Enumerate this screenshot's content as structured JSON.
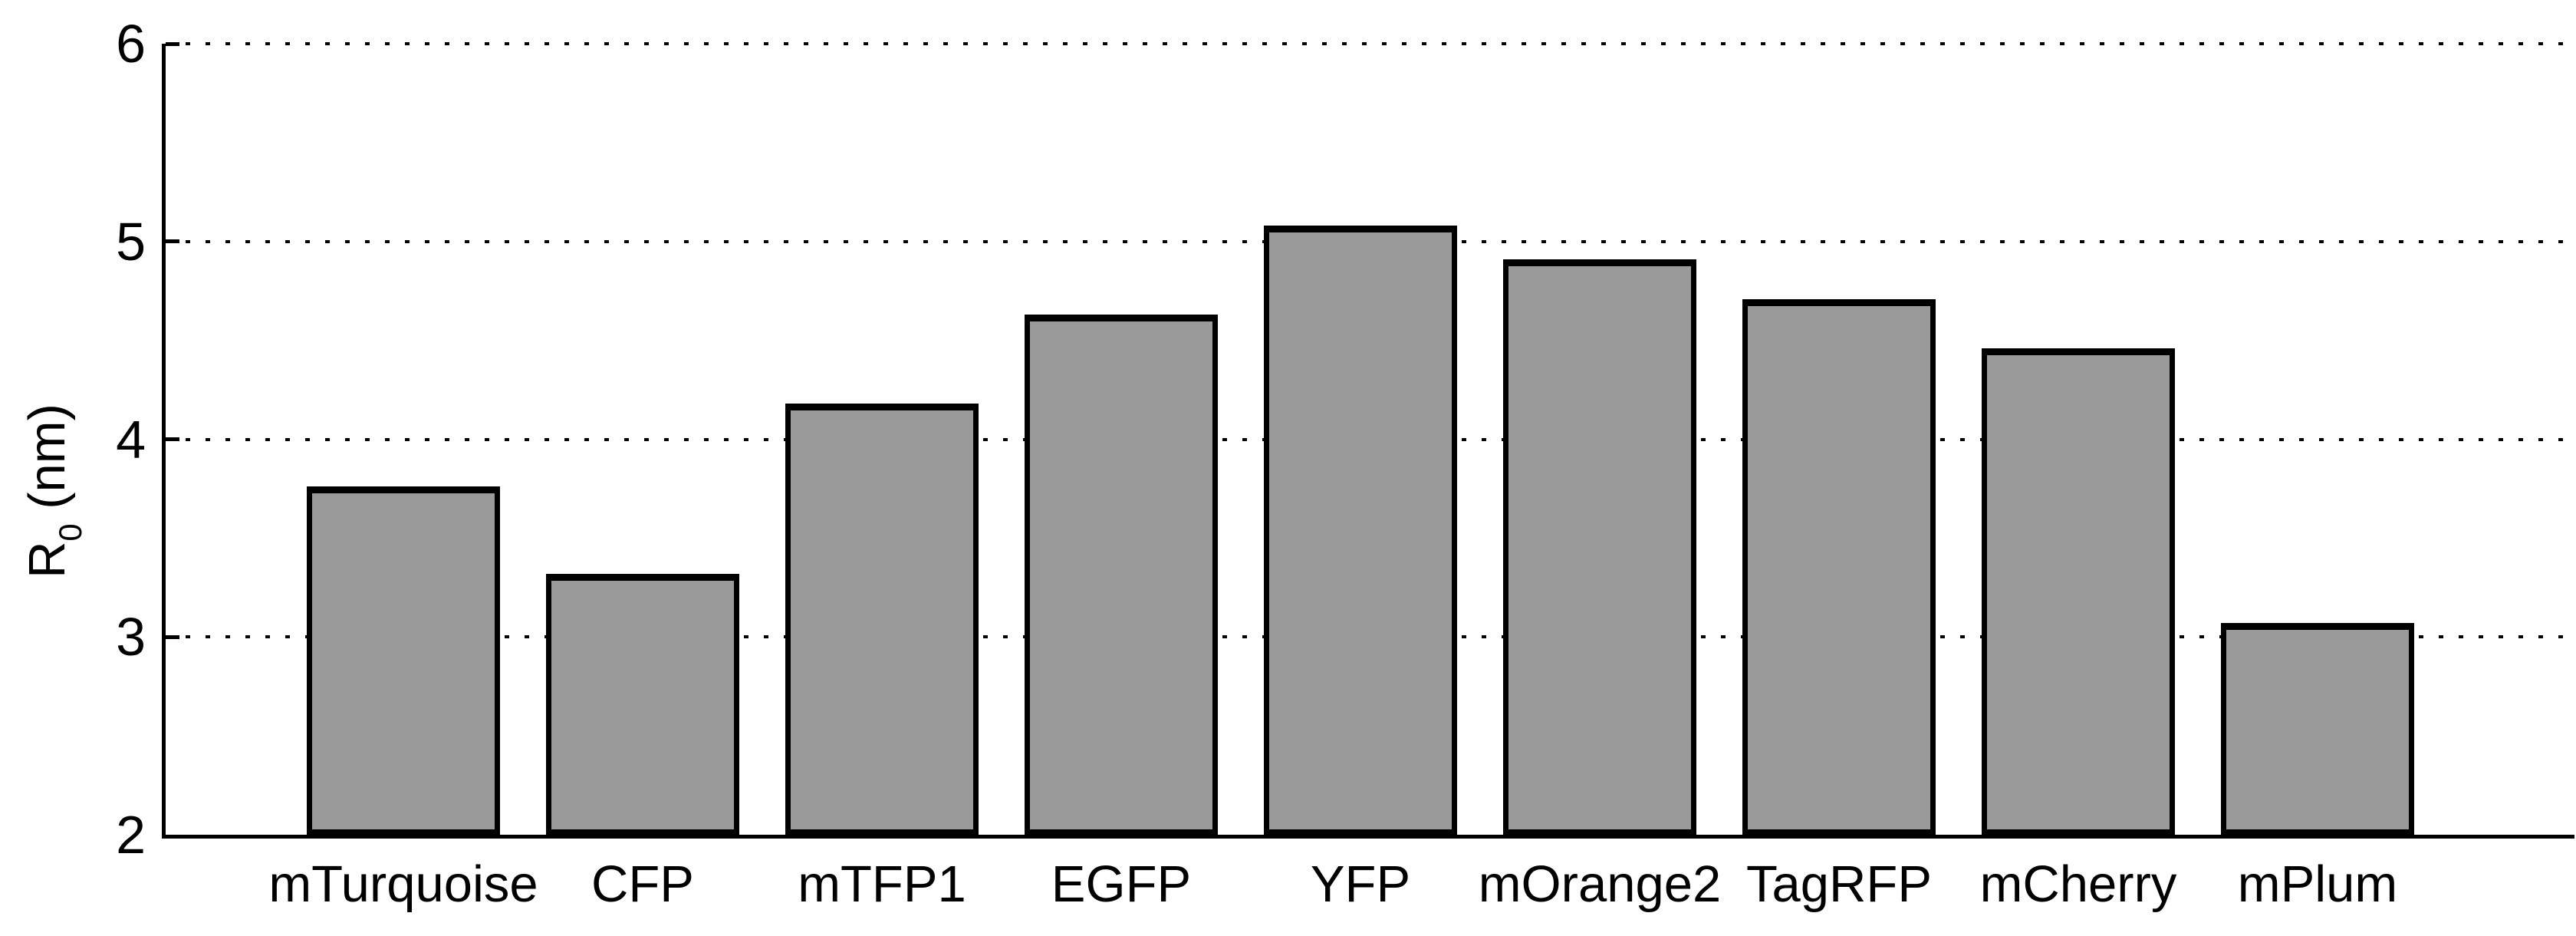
{
  "chart_data": {
    "type": "bar",
    "categories": [
      "mTurquoise",
      "CFP",
      "mTFP1",
      "EGFP",
      "YFP",
      "mOrange2",
      "TagRFP",
      "mCherry",
      "mPlum"
    ],
    "values": [
      3.76,
      3.32,
      4.18,
      4.63,
      5.08,
      4.91,
      4.71,
      4.46,
      3.07
    ],
    "title": "",
    "xlabel": "",
    "ylabel": "R0 (nm)",
    "ylabel_parts": {
      "base": "R",
      "sub": "0",
      "unit": " (nm)"
    },
    "ylim": [
      2,
      6
    ],
    "yticks": [
      "2",
      "3",
      "4",
      "5",
      "6"
    ],
    "grid": "horizontal dotted at 3,4,5,6",
    "legend": "none",
    "bar_fill": "#9a9a9a",
    "bar_edge": "#000000",
    "axis_color": "#000000"
  }
}
